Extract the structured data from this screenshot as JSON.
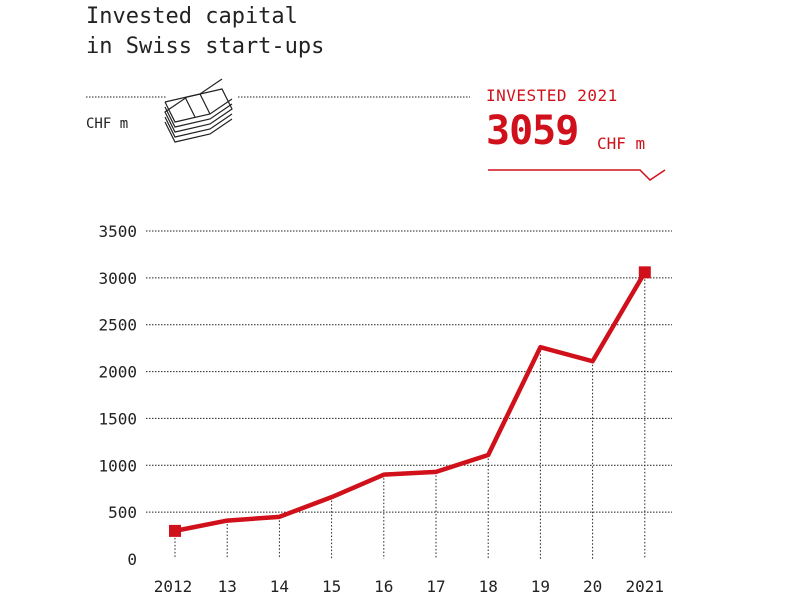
{
  "chart_data": {
    "type": "line",
    "title": "Invested capital\nin Swiss start-ups",
    "ylabel": "CHF m",
    "categories": [
      "2012",
      "13",
      "14",
      "15",
      "16",
      "17",
      "18",
      "19",
      "20",
      "2021"
    ],
    "series": [
      {
        "values": [
          300,
          410,
          450,
          660,
          900,
          930,
          1110,
          2260,
          2110,
          3059
        ]
      }
    ],
    "ylim": [
      0,
      3500
    ],
    "yticks": [
      0,
      500,
      1000,
      1500,
      2000,
      2500,
      3000,
      3500
    ],
    "grid": true,
    "line_color": "#d0111b",
    "highlight": {
      "label": "INVESTED 2021",
      "value": "3059",
      "unit": "CHF m"
    }
  }
}
